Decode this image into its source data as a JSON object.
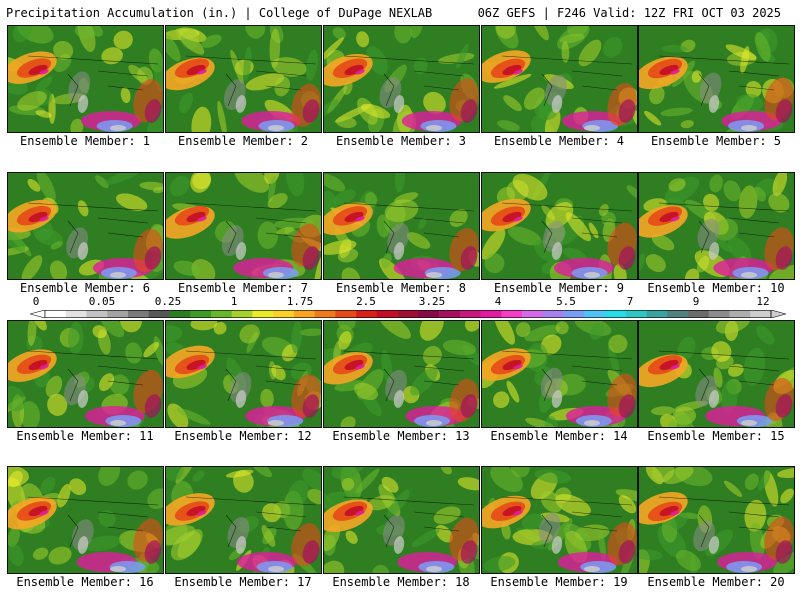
{
  "header": {
    "left": "Precipitation Accumulation (in.) | College of DuPage NEXLAB",
    "right": "06Z GEFS | F246 Valid: 12Z FRI OCT 03 2025"
  },
  "colorbar": {
    "tick_labels": [
      "0",
      "0.05",
      "0.25",
      "1",
      "1.75",
      "2.5",
      "3.25",
      "4",
      "5.5",
      "7",
      "9",
      "12"
    ],
    "colors": [
      "#ffffff",
      "#e3e3e3",
      "#c2c2c2",
      "#a3a3a3",
      "#7a7a7a",
      "#575757",
      "#2e7d22",
      "#3e9a2a",
      "#69b62c",
      "#a6d02e",
      "#e9ec2c",
      "#fdd02a",
      "#f6a623",
      "#ee7a1c",
      "#e54a18",
      "#d81f1a",
      "#c30d26",
      "#a00f34",
      "#860a45",
      "#a5105e",
      "#c7187c",
      "#e11c9e",
      "#f43fc5",
      "#d36be8",
      "#a880f0",
      "#7a9cf6",
      "#4fc3f7",
      "#26dde8",
      "#2ec7c3",
      "#3aa39f",
      "#52827e",
      "#6b6b6b",
      "#8c8c8c",
      "#adadad",
      "#cdcdcd"
    ],
    "icon": "colorbar-arrow-icon"
  },
  "panels": [
    {
      "label": "Ensemble Member: 1"
    },
    {
      "label": "Ensemble Member: 2"
    },
    {
      "label": "Ensemble Member: 3"
    },
    {
      "label": "Ensemble Member: 4"
    },
    {
      "label": "Ensemble Member: 5"
    },
    {
      "label": "Ensemble Member: 6"
    },
    {
      "label": "Ensemble Member: 7"
    },
    {
      "label": "Ensemble Member: 8"
    },
    {
      "label": "Ensemble Member: 9"
    },
    {
      "label": "Ensemble Member: 10"
    },
    {
      "label": "Ensemble Member: 11"
    },
    {
      "label": "Ensemble Member: 12"
    },
    {
      "label": "Ensemble Member: 13"
    },
    {
      "label": "Ensemble Member: 14"
    },
    {
      "label": "Ensemble Member: 15"
    },
    {
      "label": "Ensemble Member: 16"
    },
    {
      "label": "Ensemble Member: 17"
    },
    {
      "label": "Ensemble Member: 18"
    },
    {
      "label": "Ensemble Member: 19"
    },
    {
      "label": "Ensemble Member: 20"
    }
  ]
}
